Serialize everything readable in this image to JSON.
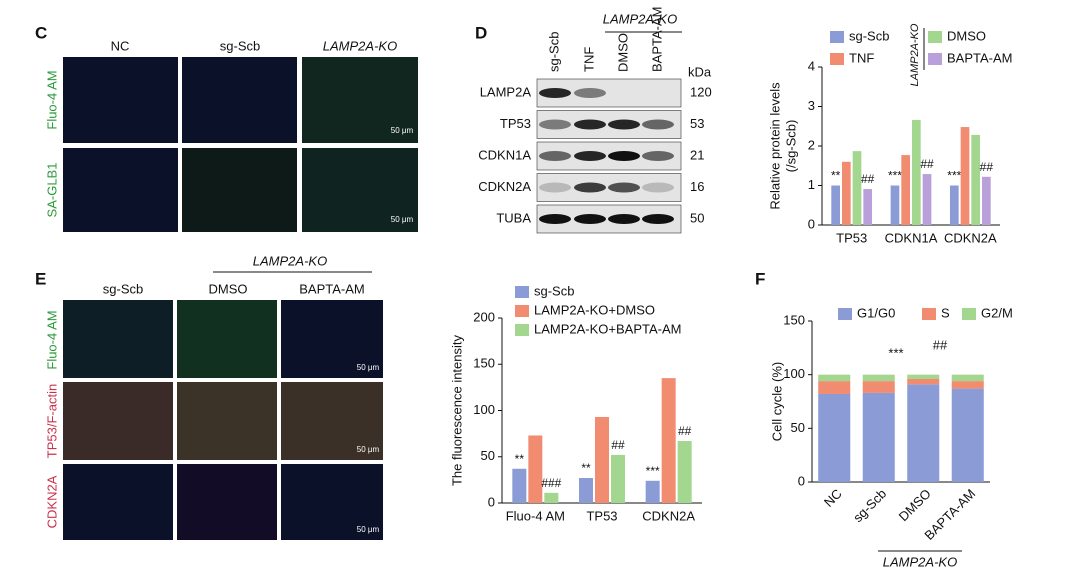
{
  "panel_c": {
    "label": "C",
    "columns": [
      "NC",
      "sg-Scb",
      "LAMP2A-KO"
    ],
    "rows": [
      "Fluo-4 AM",
      "SA-GLB1"
    ],
    "scale_bar": "50 μm"
  },
  "panel_d": {
    "label": "D",
    "lanes": [
      "sg-Scb",
      "TNF",
      "DMSO",
      "BAPTA-AM"
    ],
    "lane_group": "LAMP2A-KO",
    "unit": "kDa",
    "proteins": [
      {
        "name": "LAMP2A",
        "kda": 120
      },
      {
        "name": "TP53",
        "kda": 53
      },
      {
        "name": "CDKN1A",
        "kda": 21
      },
      {
        "name": "CDKN2A",
        "kda": 16
      },
      {
        "name": "TUBA",
        "kda": 50
      }
    ]
  },
  "panel_e": {
    "label": "E",
    "columns": [
      "sg-Scb",
      "DMSO",
      "BAPTA-AM"
    ],
    "column_group": "LAMP2A-KO",
    "rows": [
      "Fluo-4 AM",
      "TP53/F-actin",
      "CDKN2A"
    ],
    "scale_bar": "50 μm"
  },
  "panel_f": {
    "label": "F",
    "group_label": "LAMP2A-KO"
  },
  "chart_data": [
    {
      "type": "bar",
      "ylabel": [
        "Relative protein levels",
        "(/sg-Scb)"
      ],
      "legend_group": "LAMP2A-KO",
      "categories": [
        "TP53",
        "CDKN1A",
        "CDKN2A"
      ],
      "ylim": [
        0,
        4
      ],
      "yticks": [
        0,
        1,
        2,
        3,
        4
      ],
      "series": [
        {
          "name": "sg-Scb",
          "color": "#8a9bd6",
          "values": [
            1.0,
            1.0,
            1.0
          ],
          "annotations": [
            "**",
            "***",
            "***"
          ]
        },
        {
          "name": "TNF",
          "color": "#f28c70",
          "values": [
            1.6,
            1.77,
            2.48
          ]
        },
        {
          "name": "DMSO",
          "color": "#a3d68f",
          "values": [
            1.87,
            2.66,
            2.28
          ]
        },
        {
          "name": "BAPTA-AM",
          "color": "#b9a0da",
          "values": [
            0.91,
            1.29,
            1.22
          ],
          "annotations": [
            "##",
            "##",
            "##"
          ]
        }
      ]
    },
    {
      "type": "bar",
      "ylabel": [
        "The fluorescence intensity"
      ],
      "categories": [
        "Fluo-4 AM",
        "TP53",
        "CDKN2A"
      ],
      "ylim": [
        0,
        200
      ],
      "yticks": [
        0,
        50,
        100,
        150,
        200
      ],
      "series": [
        {
          "name": "sg-Scb",
          "color": "#8a9bd6",
          "values": [
            37,
            27,
            24
          ],
          "annotations": [
            "**",
            "**",
            "***"
          ]
        },
        {
          "name": "LAMP2A-KO+DMSO",
          "color": "#f28c70",
          "values": [
            73,
            93,
            135
          ]
        },
        {
          "name": "LAMP2A-KO+BAPTA-AM",
          "color": "#a3d68f",
          "values": [
            11,
            52,
            67
          ],
          "annotations": [
            "###",
            "##",
            "##"
          ]
        }
      ]
    },
    {
      "type": "stacked_bar",
      "ylabel": [
        "Cell cycle (%)"
      ],
      "categories": [
        "NC",
        "sg-Scb",
        "DMSO",
        "BAPTA-AM"
      ],
      "ylim": [
        0,
        150
      ],
      "yticks": [
        0,
        50,
        100,
        150
      ],
      "annotations": [
        "***",
        "##"
      ],
      "series": [
        {
          "name": "G1/G0",
          "color": "#8a9bd6",
          "values": [
            82,
            83,
            91,
            87
          ]
        },
        {
          "name": "S",
          "color": "#f28c70",
          "values": [
            12,
            11,
            5,
            7
          ]
        },
        {
          "name": "G2/M",
          "color": "#a3d68f",
          "values": [
            6,
            6,
            4,
            6
          ]
        }
      ]
    }
  ]
}
